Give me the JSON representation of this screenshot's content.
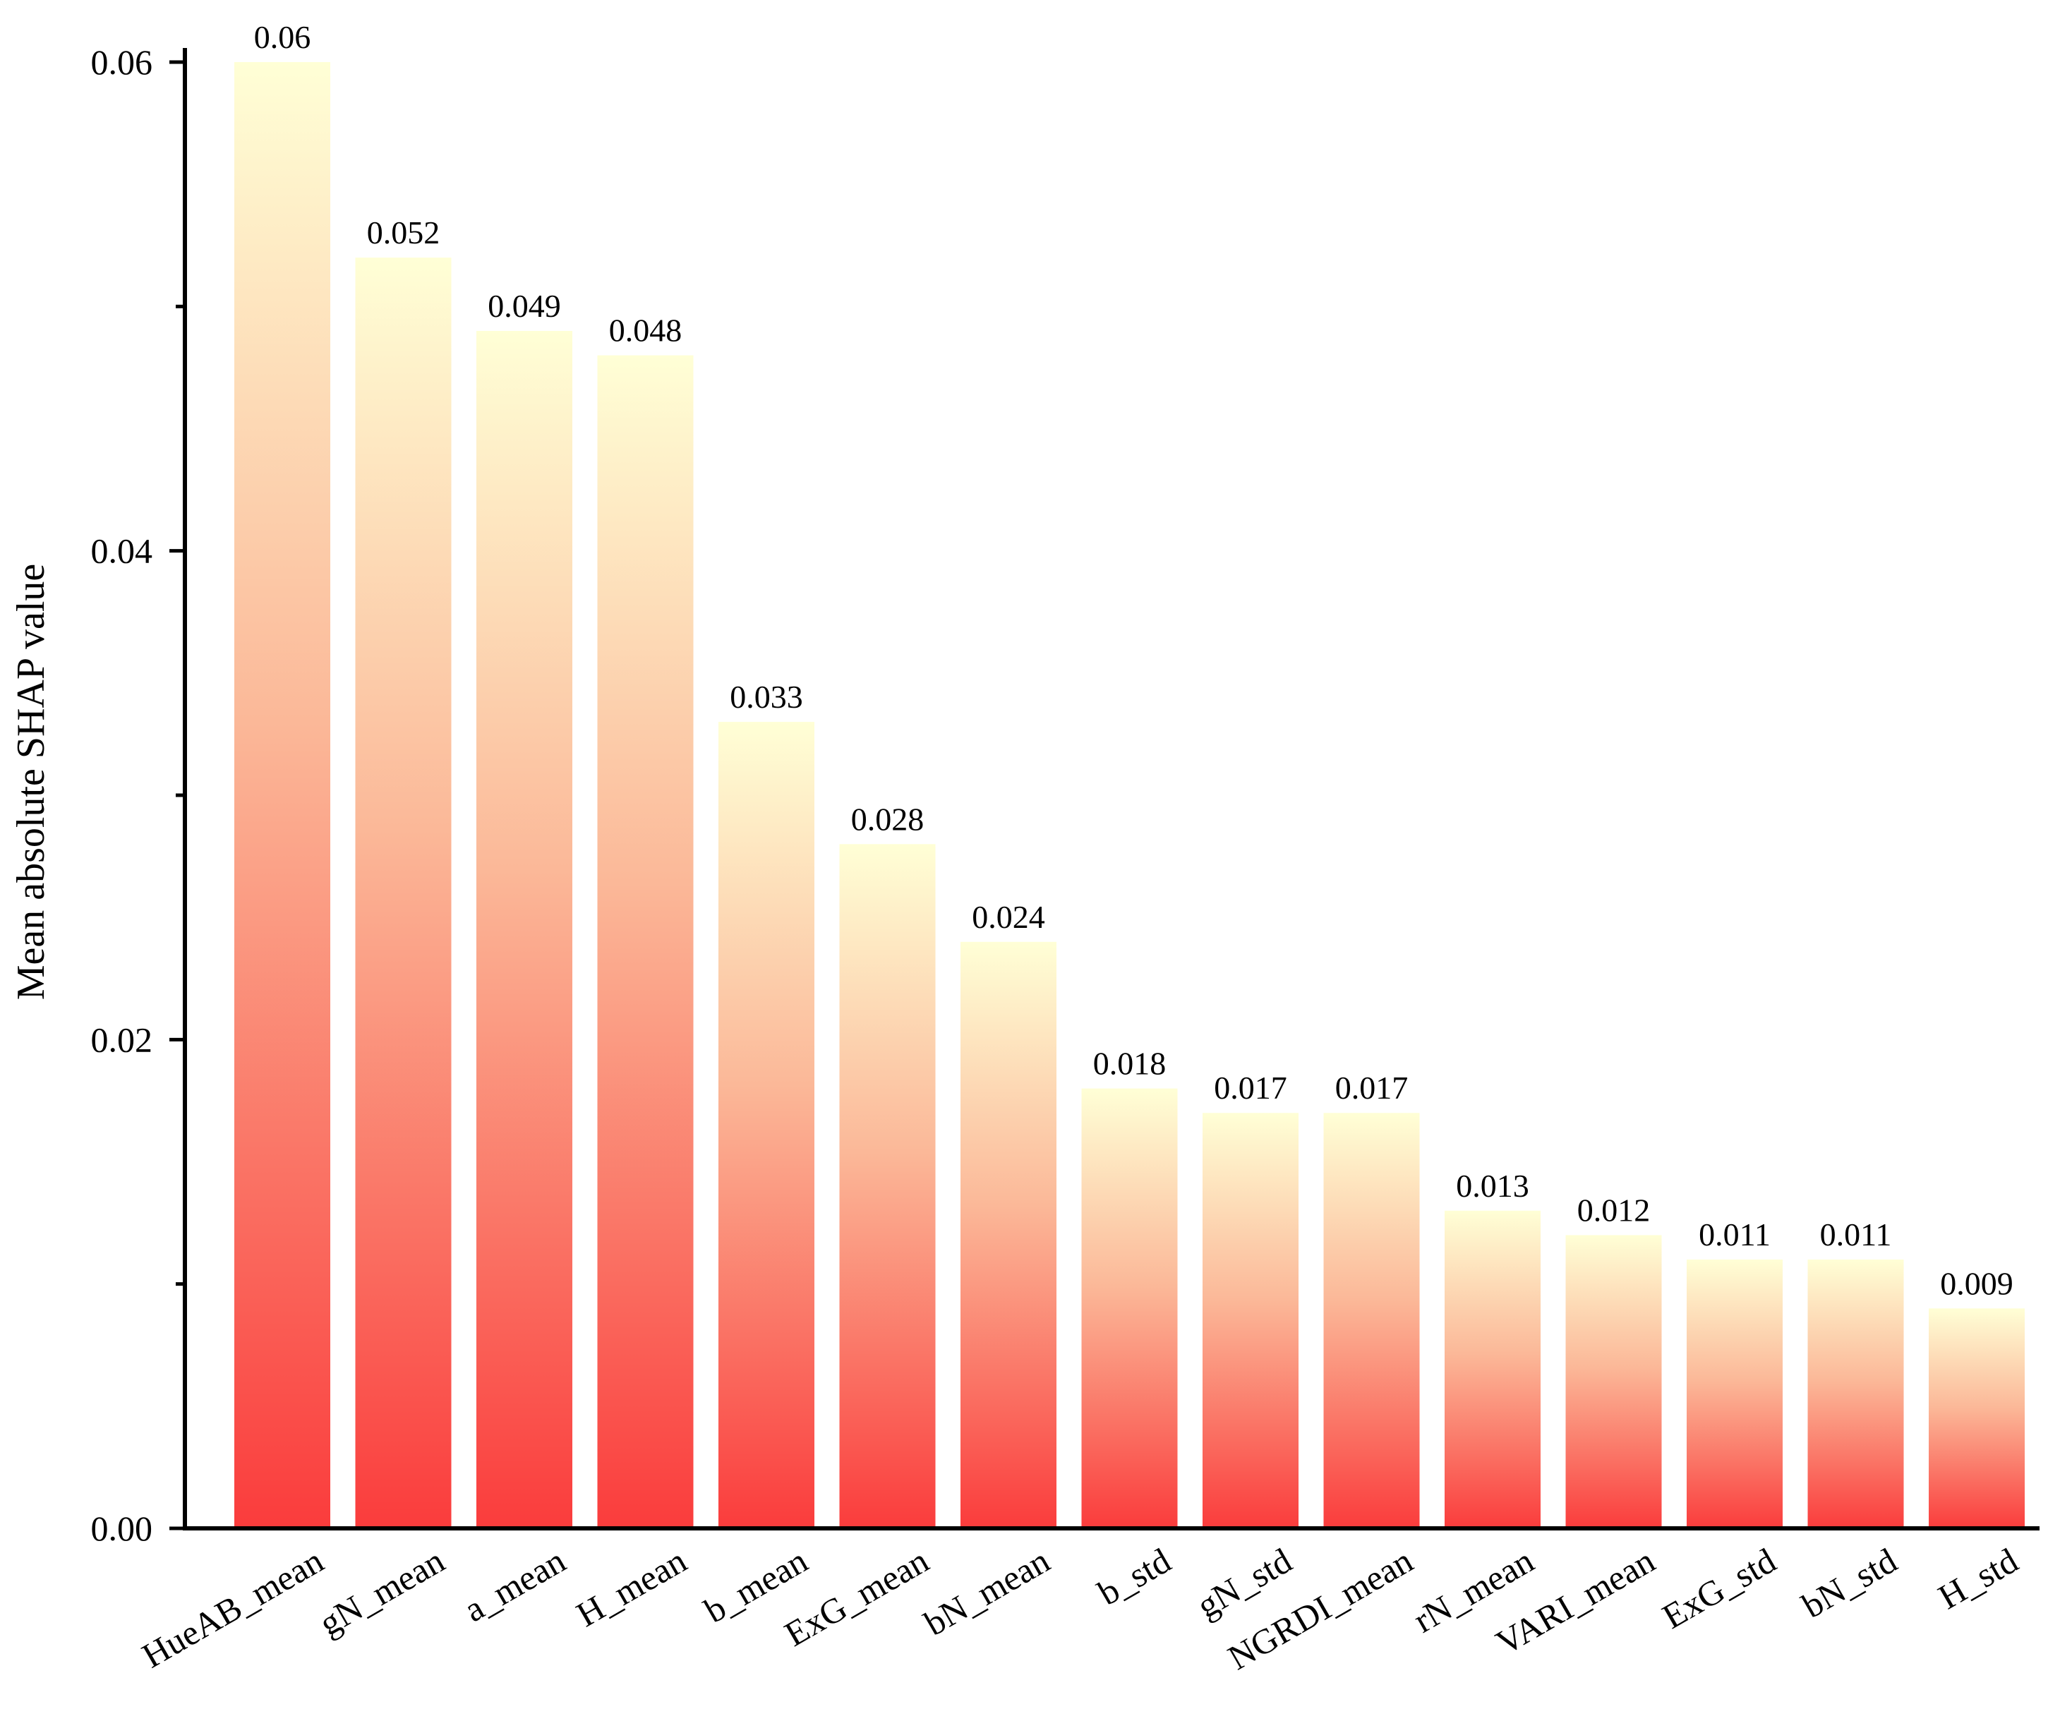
{
  "chart_data": {
    "type": "bar",
    "title": "",
    "xlabel": "",
    "ylabel": "Mean absolute SHAP value",
    "ylim": [
      0,
      0.06
    ],
    "yticks": [
      "0.00",
      "0.02",
      "0.04",
      "0.06"
    ],
    "grid": false,
    "legend": "none",
    "categories": [
      "HueAB_mean",
      "gN_mean",
      "a_mean",
      "H_mean",
      "b_mean",
      "ExG_mean",
      "bN_mean",
      "b_std",
      "gN_std",
      "NGRDI_mean",
      "rN_mean",
      "VARI_mean",
      "ExG_std",
      "bN_std",
      "H_std"
    ],
    "values": [
      0.06,
      0.052,
      0.049,
      0.048,
      0.033,
      0.028,
      0.024,
      0.018,
      0.017,
      0.017,
      0.013,
      0.012,
      0.011,
      0.011,
      0.009
    ],
    "value_labels": [
      "0.06",
      "0.052",
      "0.049",
      "0.048",
      "0.033",
      "0.028",
      "0.024",
      "0.018",
      "0.017",
      "0.017",
      "0.013",
      "0.012",
      "0.011",
      "0.011",
      "0.009"
    ],
    "colors": {
      "bar_top": "#ffffd6",
      "bar_bottom": "#fa3c3c",
      "axis": "#000000"
    }
  }
}
